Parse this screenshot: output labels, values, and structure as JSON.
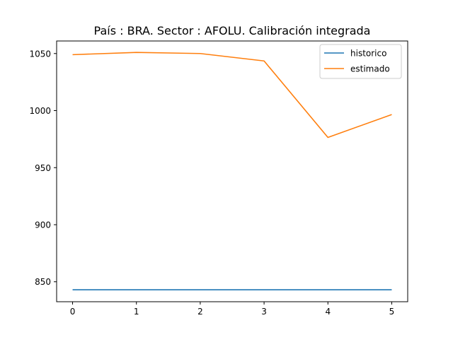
{
  "chart_data": {
    "type": "line",
    "title": "País : BRA. Sector : AFOLU. Calibración integrada",
    "xlabel": "",
    "ylabel": "",
    "x": [
      0,
      1,
      2,
      3,
      4,
      5
    ],
    "x_ticks": [
      "0",
      "1",
      "2",
      "3",
      "4",
      "5"
    ],
    "y_ticks": [
      "850",
      "900",
      "950",
      "1000",
      "1050"
    ],
    "y_tick_values": [
      850,
      900,
      950,
      1000,
      1050
    ],
    "xlim": [
      -0.25,
      5.25
    ],
    "ylim": [
      832.5,
      1061
    ],
    "grid": false,
    "legend_position": "top-right",
    "series": [
      {
        "name": "historico",
        "color": "#1f77b4",
        "values": [
          843,
          843,
          843,
          843,
          843,
          843
        ]
      },
      {
        "name": "estimado",
        "color": "#ff7f0e",
        "values": [
          1049,
          1051,
          1050,
          1043.5,
          976.5,
          996.5
        ]
      }
    ]
  }
}
